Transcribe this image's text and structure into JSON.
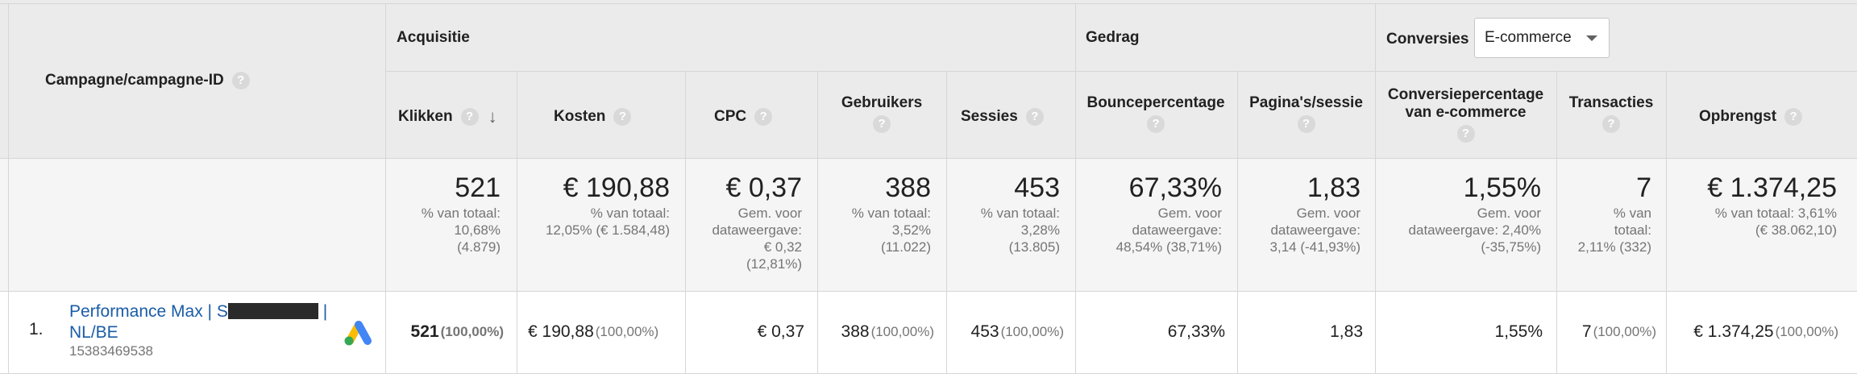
{
  "groups": {
    "acquisition": "Acquisitie",
    "behavior": "Gedrag",
    "conversions": "Conversies"
  },
  "conversion_dropdown": {
    "selected": "E-commerce",
    "options": [
      "E-commerce"
    ]
  },
  "dimension_header": "Campagne/campagne-ID",
  "help_glyph": "?",
  "sort_glyph": "↓",
  "columns": {
    "klikken": "Klikken",
    "kosten": "Kosten",
    "cpc": "CPC",
    "gebruikers": "Gebruikers",
    "sessies": "Sessies",
    "bounce": "Bouncepercentage",
    "paginas": "Pagina's/sessie",
    "conversie_line1": "Conversiepercentage",
    "conversie_line2": "van e-commerce",
    "transacties": "Transacties",
    "opbrengst": "Opbrengst"
  },
  "totals": {
    "klikken": {
      "value": "521",
      "lines": [
        "% van totaal:",
        "10,68%",
        "(4.879)"
      ]
    },
    "kosten": {
      "value": "€ 190,88",
      "lines": [
        "% van totaal:",
        "12,05% (€ 1.584,48)"
      ]
    },
    "cpc": {
      "value": "€ 0,37",
      "lines": [
        "Gem. voor",
        "dataweergave:",
        "€ 0,32",
        "(12,81%)"
      ]
    },
    "gebruikers": {
      "value": "388",
      "lines": [
        "% van totaal:",
        "3,52%",
        "(11.022)"
      ]
    },
    "sessies": {
      "value": "453",
      "lines": [
        "% van totaal:",
        "3,28%",
        "(13.805)"
      ]
    },
    "bounce": {
      "value": "67,33%",
      "lines": [
        "Gem. voor",
        "dataweergave:",
        "48,54% (38,71%)"
      ]
    },
    "paginas": {
      "value": "1,83",
      "lines": [
        "Gem. voor",
        "dataweergave:",
        "3,14 (-41,93%)"
      ]
    },
    "conversie": {
      "value": "1,55%",
      "lines": [
        "Gem. voor",
        "dataweergave: 2,40%",
        "(-35,75%)"
      ]
    },
    "transacties": {
      "value": "7",
      "lines": [
        "% van",
        "totaal:",
        "2,11% (332)"
      ]
    },
    "opbrengst": {
      "value": "€ 1.374,25",
      "lines": [
        "% van totaal: 3,61%",
        "(€ 38.062,10)"
      ]
    }
  },
  "rows": [
    {
      "index": "1.",
      "campaign_line1_pre": "Performance Max | S",
      "campaign_line1_post": "|",
      "campaign_line2": "NL/BE",
      "campaign_id": "15383469538",
      "source_icon": "google-ads-icon",
      "klikken": {
        "value": "521",
        "pct": "(100,00%)"
      },
      "kosten": {
        "value": "€ 190,88",
        "pct": "(100,00%)"
      },
      "cpc": {
        "value": "€ 0,37"
      },
      "gebruikers": {
        "value": "388",
        "pct": "(100,00%)"
      },
      "sessies": {
        "value": "453",
        "pct": "(100,00%)"
      },
      "bounce": {
        "value": "67,33%"
      },
      "paginas": {
        "value": "1,83"
      },
      "conversie": {
        "value": "1,55%"
      },
      "transacties": {
        "value": "7",
        "pct": "(100,00%)"
      },
      "opbrengst": {
        "value": "€ 1.374,25",
        "pct": "(100,00%)"
      }
    }
  ],
  "colors": {
    "header_bg": "#ebebeb",
    "totals_bg": "#f5f5f5",
    "link": "#1a5ca6",
    "muted": "#757575",
    "grid": "#d6d6d6"
  }
}
